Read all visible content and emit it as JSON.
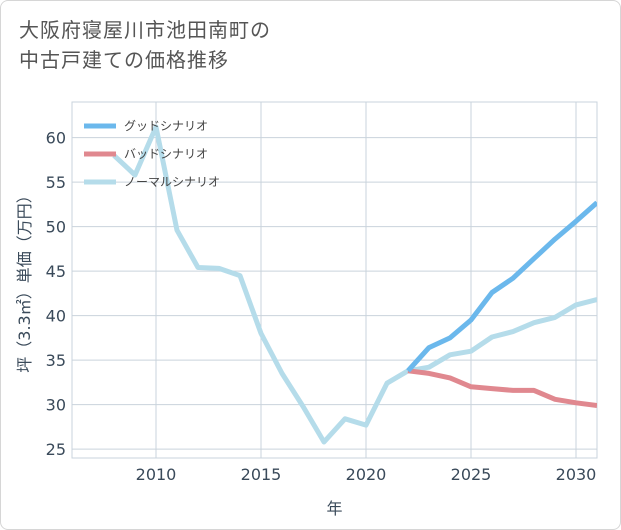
{
  "title_line1": "大阪府寝屋川市池田南町の",
  "title_line2": "中古戸建ての価格推移",
  "chart_data": {
    "type": "line",
    "xlabel": "年",
    "ylabel": "坪（3.3㎡）単価（万円）",
    "xlim": [
      2006,
      2031
    ],
    "ylim": [
      24,
      64
    ],
    "xticks": [
      2010,
      2015,
      2020,
      2025,
      2030
    ],
    "yticks": [
      25,
      30,
      35,
      40,
      45,
      50,
      55,
      60
    ],
    "grid": true,
    "legend_position": "top-left",
    "series": [
      {
        "name": "グッドシナリオ",
        "color": "#6bb8ec",
        "x": [
          2022,
          2023,
          2024,
          2025,
          2026,
          2027,
          2028,
          2029,
          2030,
          2031
        ],
        "y": [
          33.8,
          36.4,
          37.5,
          39.5,
          42.6,
          44.2,
          46.4,
          48.6,
          50.6,
          52.7
        ]
      },
      {
        "name": "バッドシナリオ",
        "color": "#e0888f",
        "x": [
          2022,
          2023,
          2024,
          2025,
          2026,
          2027,
          2028,
          2029,
          2030,
          2031
        ],
        "y": [
          33.8,
          33.5,
          33.0,
          32.0,
          31.8,
          31.6,
          31.6,
          30.6,
          30.2,
          29.9
        ]
      },
      {
        "name": "ノーマルシナリオ",
        "color": "#b5dcea",
        "x": [
          2008,
          2009,
          2010,
          2011,
          2012,
          2013,
          2014,
          2015,
          2016,
          2017,
          2018,
          2019,
          2020,
          2021,
          2022,
          2023,
          2024,
          2025,
          2026,
          2027,
          2028,
          2029,
          2030,
          2031
        ],
        "y": [
          58.0,
          55.8,
          61.2,
          49.6,
          45.4,
          45.3,
          44.5,
          38.0,
          33.5,
          29.8,
          25.8,
          28.4,
          27.7,
          32.4,
          33.8,
          34.2,
          35.6,
          36.0,
          37.6,
          38.2,
          39.2,
          39.8,
          41.2,
          41.8
        ]
      }
    ]
  }
}
